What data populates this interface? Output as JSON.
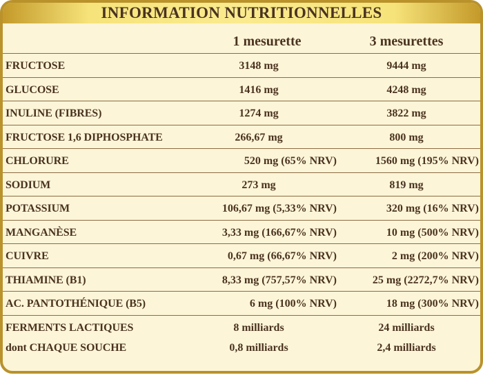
{
  "title": "INFORMATION NUTRITIONNELLES",
  "columns": [
    "1 mesurette",
    "3 mesurettes"
  ],
  "rows": [
    {
      "label": "FRUCTOSE",
      "v1": "3148 mg",
      "v2": "9444 mg",
      "align": "center"
    },
    {
      "label": "GLUCOSE",
      "v1": "1416 mg",
      "v2": "4248 mg",
      "align": "center"
    },
    {
      "label": "INULINE (FIBRES)",
      "v1": "1274 mg",
      "v2": "3822 mg",
      "align": "center"
    },
    {
      "label": "FRUCTOSE 1,6 DIPHOSPHATE",
      "v1": "266,67 mg",
      "v2": "800 mg",
      "align": "center"
    },
    {
      "label": "CHLORURE",
      "v1": "520 mg (65% NRV)",
      "v2": "1560 mg (195% NRV)",
      "align": "right"
    },
    {
      "label": "SODIUM",
      "v1": "273 mg",
      "v2": "819 mg",
      "align": "center"
    },
    {
      "label": "POTASSIUM",
      "v1": "106,67 mg (5,33% NRV)",
      "v2": "320 mg (16% NRV)",
      "align": "right"
    },
    {
      "label": "MANGANÈSE",
      "v1": "3,33 mg (166,67% NRV)",
      "v2": "10 mg (500% NRV)",
      "align": "right"
    },
    {
      "label": "CUIVRE",
      "v1": "0,67 mg (66,67% NRV)",
      "v2": "2 mg (200% NRV)",
      "align": "right"
    },
    {
      "label": "THIAMINE (B1)",
      "v1": "8,33 mg (757,57% NRV)",
      "v2": "25 mg (2272,7% NRV)",
      "align": "right"
    },
    {
      "label": "AC. PANTOTHÉNIQUE (B5)",
      "v1": "6 mg (100% NRV)",
      "v2": "18 mg (300% NRV)",
      "align": "right"
    }
  ],
  "ferments": {
    "label1": "FERMENTS LACTIQUES",
    "label2": "dont CHAQUE SOUCHE",
    "v1_line1": "8 milliards",
    "v1_line2": "0,8 milliards",
    "v2_line1": "24 milliards",
    "v2_line2": "2,4 milliards"
  },
  "colors": {
    "border": "#b9922c",
    "background": "#fdf5d8",
    "title_gold": "#fbeb8f",
    "text": "#4a3320",
    "rule": "#8a6a42"
  }
}
